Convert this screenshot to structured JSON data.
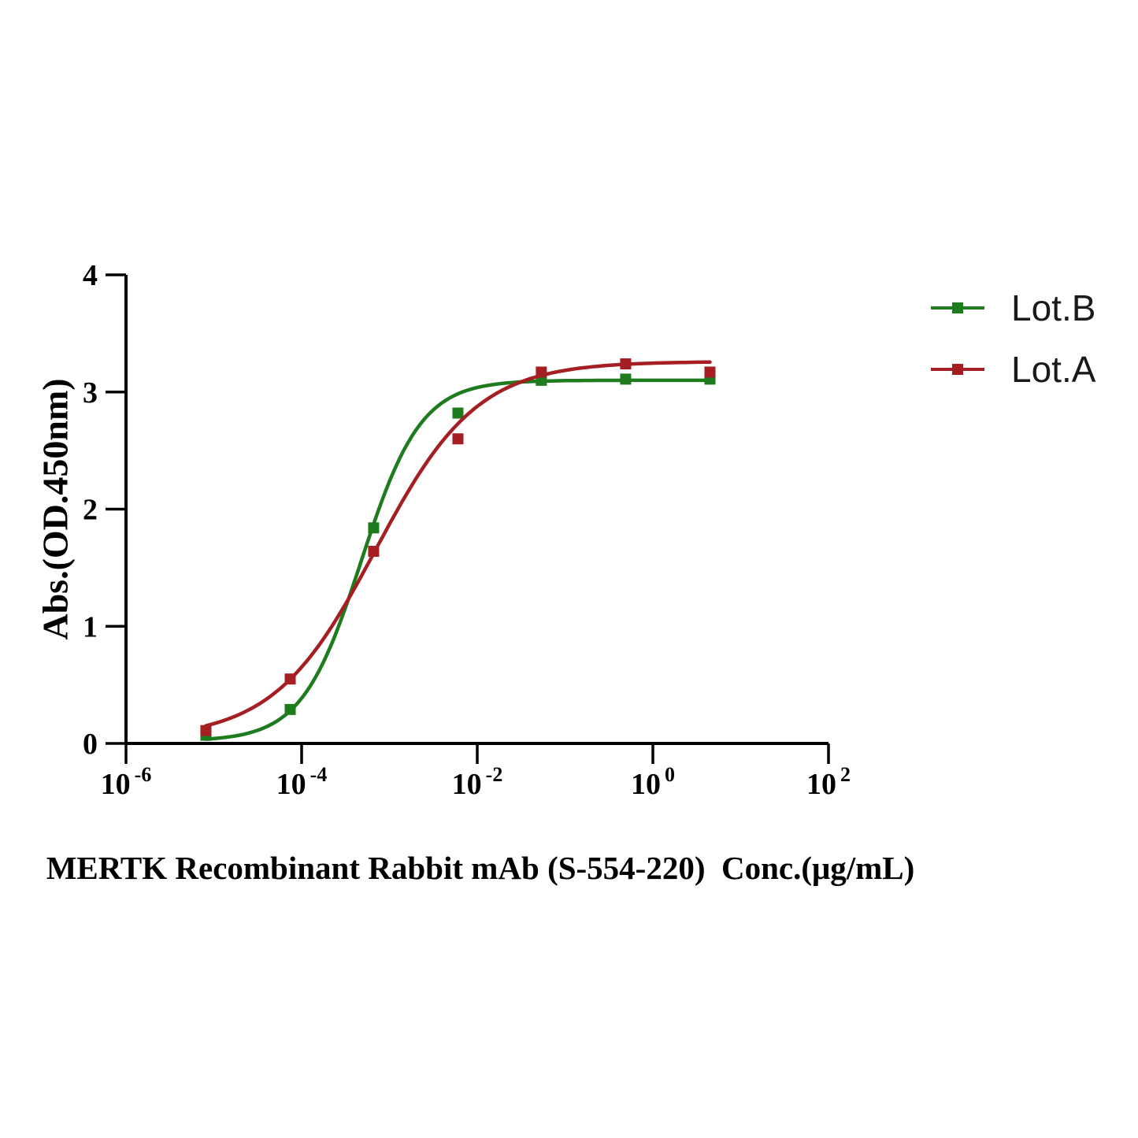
{
  "chart_data": {
    "type": "line",
    "title": "",
    "xlabel": "MERTK Recombinant Rabbit mAb (S-554-220)  Conc.(μg/mL)",
    "ylabel": "Abs.(OD.450nm)",
    "x_scale": "log10",
    "x_log_range": [
      -6,
      2
    ],
    "x_tick_base": "10",
    "x_tick_exponents": [
      -6,
      -4,
      -2,
      0,
      2
    ],
    "ylim": [
      0,
      4
    ],
    "y_ticks": [
      0,
      1,
      2,
      3,
      4
    ],
    "grid": false,
    "legend_position": "top-right-outside",
    "marker": "square",
    "series": [
      {
        "name": "Lot.B",
        "color": "#1e7b1e",
        "marker": "square",
        "x_log10": [
          -5.09,
          -4.13,
          -3.18,
          -2.22,
          -1.27,
          -0.31,
          0.65
        ],
        "x_conc_ug_per_ml": [
          8.2e-06,
          7.4e-05,
          0.00067,
          0.0061,
          0.054,
          0.49,
          4.4
        ],
        "y_abs": [
          0.07,
          0.29,
          1.84,
          2.82,
          3.1,
          3.11,
          3.11
        ],
        "fit_4pl": {
          "bottom": 0.02,
          "top": 3.1,
          "hill": 1.28,
          "log_ec50": -3.32
        }
      },
      {
        "name": "Lot.A",
        "color": "#a51e22",
        "marker": "square",
        "x_log10": [
          -5.09,
          -4.13,
          -3.18,
          -2.22,
          -1.27,
          -0.31,
          0.65
        ],
        "x_conc_ug_per_ml": [
          8.2e-06,
          7.4e-05,
          0.00067,
          0.0061,
          0.054,
          0.49,
          4.4
        ],
        "y_abs": [
          0.11,
          0.55,
          1.64,
          2.6,
          3.17,
          3.24,
          3.17
        ],
        "fit_4pl": {
          "bottom": 0.04,
          "top": 3.26,
          "hill": 0.75,
          "log_ec50": -3.16
        }
      }
    ],
    "colors": {
      "axis": "#000000",
      "legend_text": "#1a1a1a",
      "background": "#ffffff"
    }
  }
}
